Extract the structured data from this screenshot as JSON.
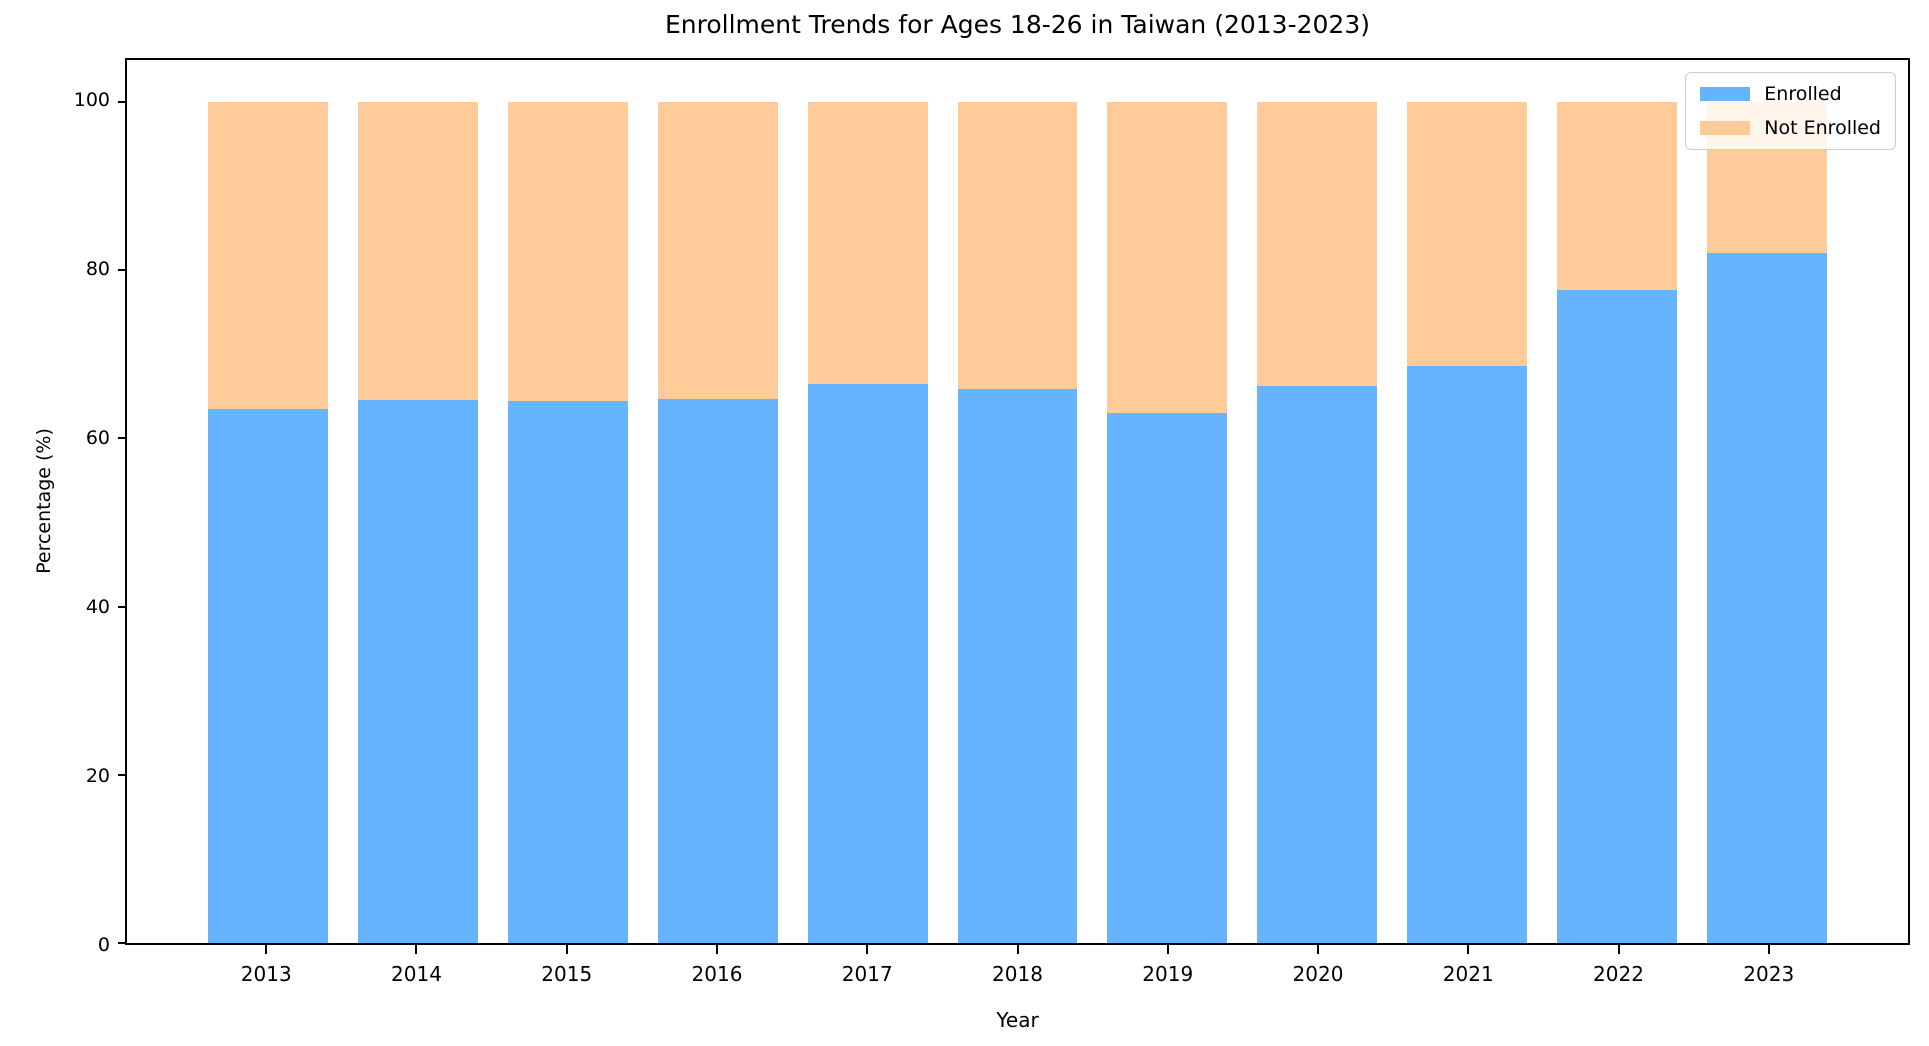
{
  "chart_data": {
    "type": "bar",
    "stacked": true,
    "title": "Enrollment Trends for Ages 18-26 in Taiwan (2013-2023)",
    "xlabel": "Year",
    "ylabel": "Percentage (%)",
    "categories": [
      "2013",
      "2014",
      "2015",
      "2016",
      "2017",
      "2018",
      "2019",
      "2020",
      "2021",
      "2022",
      "2023"
    ],
    "series": [
      {
        "name": "Enrolled",
        "color": "#66b3ff",
        "values": [
          63.5,
          64.6,
          64.5,
          64.7,
          66.5,
          65.9,
          63.0,
          66.2,
          68.6,
          77.6,
          82.1
        ]
      },
      {
        "name": "Not Enrolled",
        "color": "#ffcc99",
        "values": [
          36.5,
          35.4,
          35.5,
          35.3,
          33.5,
          34.1,
          37.0,
          33.8,
          31.4,
          22.4,
          17.9
        ]
      }
    ],
    "ylim": [
      0,
      105
    ],
    "yticks": [
      0,
      20,
      40,
      60,
      80,
      100
    ],
    "legend_position": "upper right",
    "grid": false
  }
}
